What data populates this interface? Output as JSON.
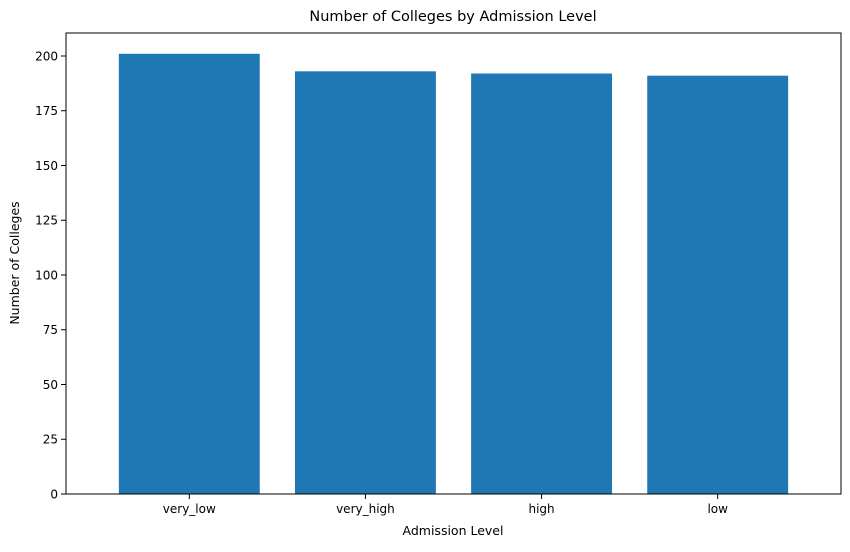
{
  "chart_data": {
    "type": "bar",
    "title": "Number of Colleges by Admission Level",
    "xlabel": "Admission Level",
    "ylabel": "Number of Colleges",
    "categories": [
      "very_low",
      "very_high",
      "high",
      "low"
    ],
    "values": [
      201,
      193,
      192,
      191
    ],
    "ylim": [
      0,
      210.5
    ],
    "yticks": [
      0,
      25,
      50,
      75,
      100,
      125,
      150,
      175,
      200
    ],
    "ytick_labels": [
      "0",
      "25",
      "50",
      "75",
      "100",
      "125",
      "150",
      "175",
      "200"
    ],
    "bar_color": "#1f77b4",
    "grid": false,
    "legend": "none"
  }
}
